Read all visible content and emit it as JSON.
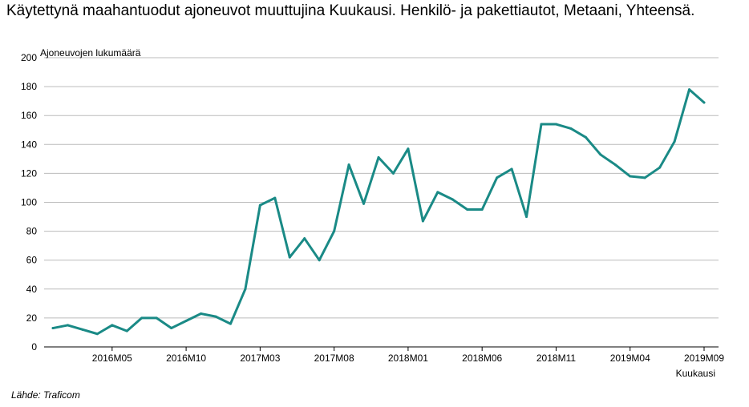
{
  "title": "Käytettynä maahantuodut ajoneuvot muuttujina Kuukausi. Henkilö- ja pakettiautot, Metaani, Yhteensä.",
  "source": "Lähde: Traficom",
  "colors": {
    "line": "#1a8a86",
    "grid": "#bbbbbb",
    "axis": "#000000"
  },
  "chart_data": {
    "type": "line",
    "title": "Käytettynä maahantuodut ajoneuvot muuttujina Kuukausi. Henkilö- ja pakettiautot, Metaani, Yhteensä.",
    "xlabel": "Kuukausi",
    "ylabel": "Ajoneuvojen lukumäärä",
    "ylim": [
      0,
      200
    ],
    "yticks": [
      0,
      20,
      40,
      60,
      80,
      100,
      120,
      140,
      160,
      180,
      200
    ],
    "grid": true,
    "x": [
      "2016M01",
      "2016M02",
      "2016M03",
      "2016M04",
      "2016M05",
      "2016M06",
      "2016M07",
      "2016M08",
      "2016M09",
      "2016M10",
      "2016M11",
      "2016M12",
      "2017M01",
      "2017M02",
      "2017M03",
      "2017M04",
      "2017M05",
      "2017M06",
      "2017M07",
      "2017M08",
      "2017M09",
      "2017M10",
      "2017M11",
      "2017M12",
      "2018M01",
      "2018M02",
      "2018M03",
      "2018M04",
      "2018M05",
      "2018M06",
      "2018M07",
      "2018M08",
      "2018M09",
      "2018M10",
      "2018M11",
      "2018M12",
      "2019M01",
      "2019M02",
      "2019M03",
      "2019M04",
      "2019M05",
      "2019M06",
      "2019M07",
      "2019M08",
      "2019M09"
    ],
    "xtick_labels": [
      "2016M05",
      "2016M10",
      "2017M03",
      "2017M08",
      "2018M01",
      "2018M06",
      "2018M11",
      "2019M04",
      "2019M09"
    ],
    "series": [
      {
        "values": [
          13,
          15,
          12,
          9,
          15,
          11,
          20,
          20,
          13,
          18,
          23,
          21,
          16,
          40,
          98,
          103,
          62,
          75,
          60,
          80,
          126,
          99,
          131,
          120,
          137,
          87,
          107,
          102,
          95,
          95,
          117,
          123,
          90,
          154,
          154,
          151,
          145,
          133,
          126,
          118,
          117,
          124,
          142,
          178,
          169
        ]
      }
    ]
  }
}
